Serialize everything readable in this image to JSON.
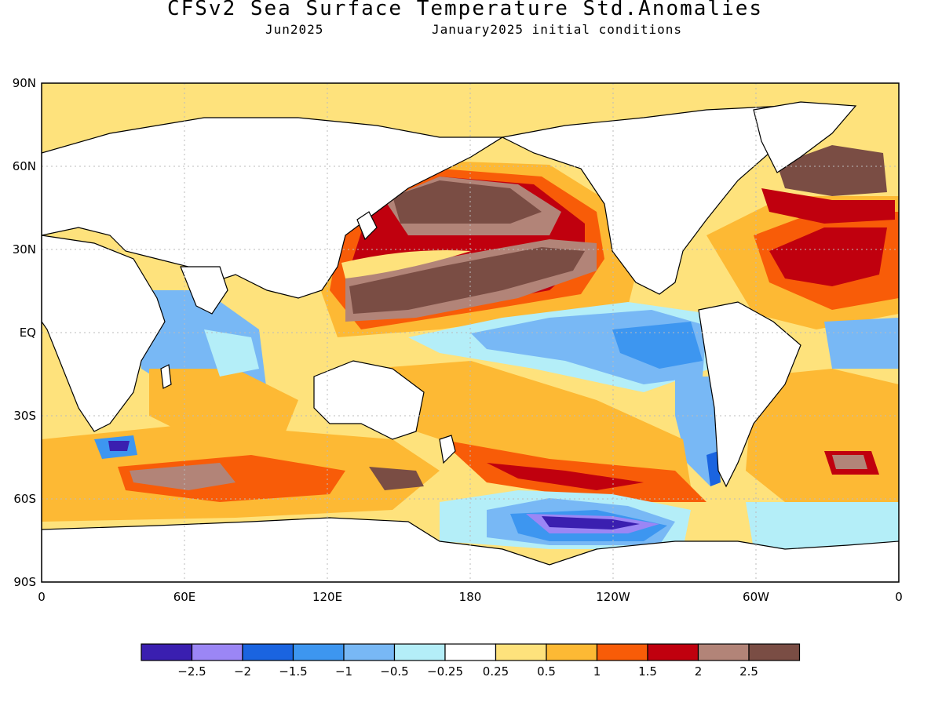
{
  "header": {
    "title": "CFSv2 Sea Surface Temperature Std.Anomalies",
    "forecast_month": "Jun2025",
    "init_conditions": "January2025 initial conditions"
  },
  "axes": {
    "lat_labels": [
      "90N",
      "60N",
      "30N",
      "EQ",
      "30S",
      "60S",
      "90S"
    ],
    "lon_labels": [
      "0",
      "60E",
      "120E",
      "180",
      "120W",
      "60W",
      "0"
    ]
  },
  "colorbar": {
    "colors": [
      "#3a1fb0",
      "#9b86f5",
      "#1a64e0",
      "#3d96f0",
      "#78b8f5",
      "#b4eef8",
      "#ffffff",
      "#fee27c",
      "#fdb934",
      "#f85c08",
      "#c0000e",
      "#b28478",
      "#7a4d44"
    ],
    "labels": [
      "-2.5",
      "-2",
      "-1.5",
      "-1",
      "-0.5",
      "-0.25",
      "0.25",
      "0.5",
      "1",
      "1.5",
      "2",
      "2.5"
    ]
  },
  "palette": {
    "land": "#ffffff",
    "frame": "#000000",
    "grid": "#bbbbbb"
  }
}
